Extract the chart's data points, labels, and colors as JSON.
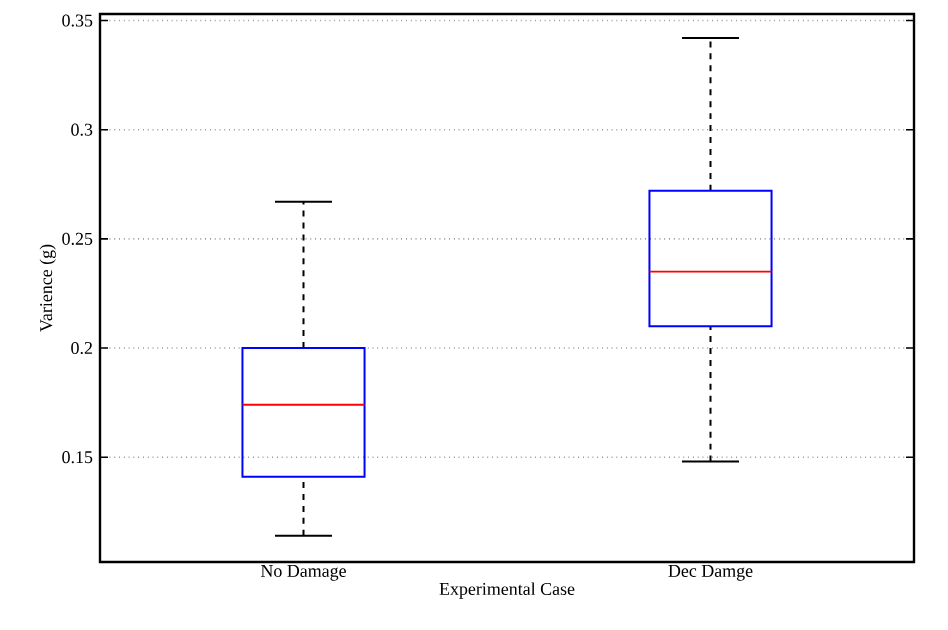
{
  "chart_data": {
    "type": "box",
    "xlabel": "Experimental Case",
    "ylabel": "Varience  (g)",
    "categories": [
      "No Damage",
      "Dec Damge"
    ],
    "color": "#0000ff",
    "boxes": [
      {
        "low": 0.114,
        "q1": 0.141,
        "median": 0.174,
        "q3": 0.2,
        "high": 0.267
      },
      {
        "low": 0.148,
        "q1": 0.21,
        "median": 0.235,
        "q3": 0.272,
        "high": 0.342
      }
    ],
    "ylim": [
      0.102,
      0.353
    ],
    "yticks": [
      0.15,
      0.2,
      0.25,
      0.3,
      0.35
    ],
    "grid": "y"
  }
}
